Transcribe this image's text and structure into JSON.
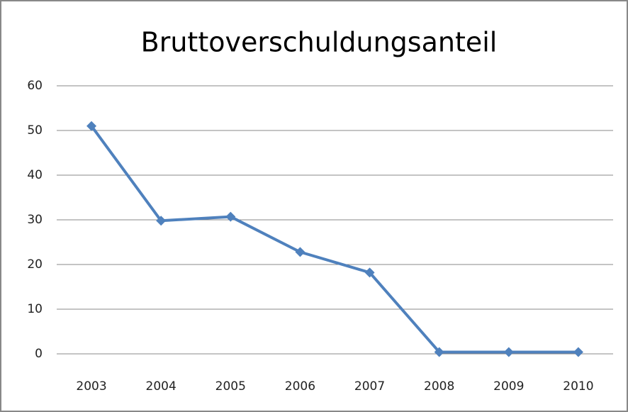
{
  "chart_data": {
    "type": "line",
    "title": "Bruttoverschuldungsanteil",
    "categories": [
      "2003",
      "2004",
      "2005",
      "2006",
      "2007",
      "2008",
      "2009",
      "2010"
    ],
    "values": [
      51,
      29.8,
      30.7,
      22.8,
      18.2,
      0.4,
      0.4,
      0.4
    ],
    "color": "#4f81bd",
    "ylim": [
      0,
      60
    ],
    "yticks": [
      0,
      10,
      20,
      30,
      40,
      50,
      60
    ],
    "grid": true
  }
}
